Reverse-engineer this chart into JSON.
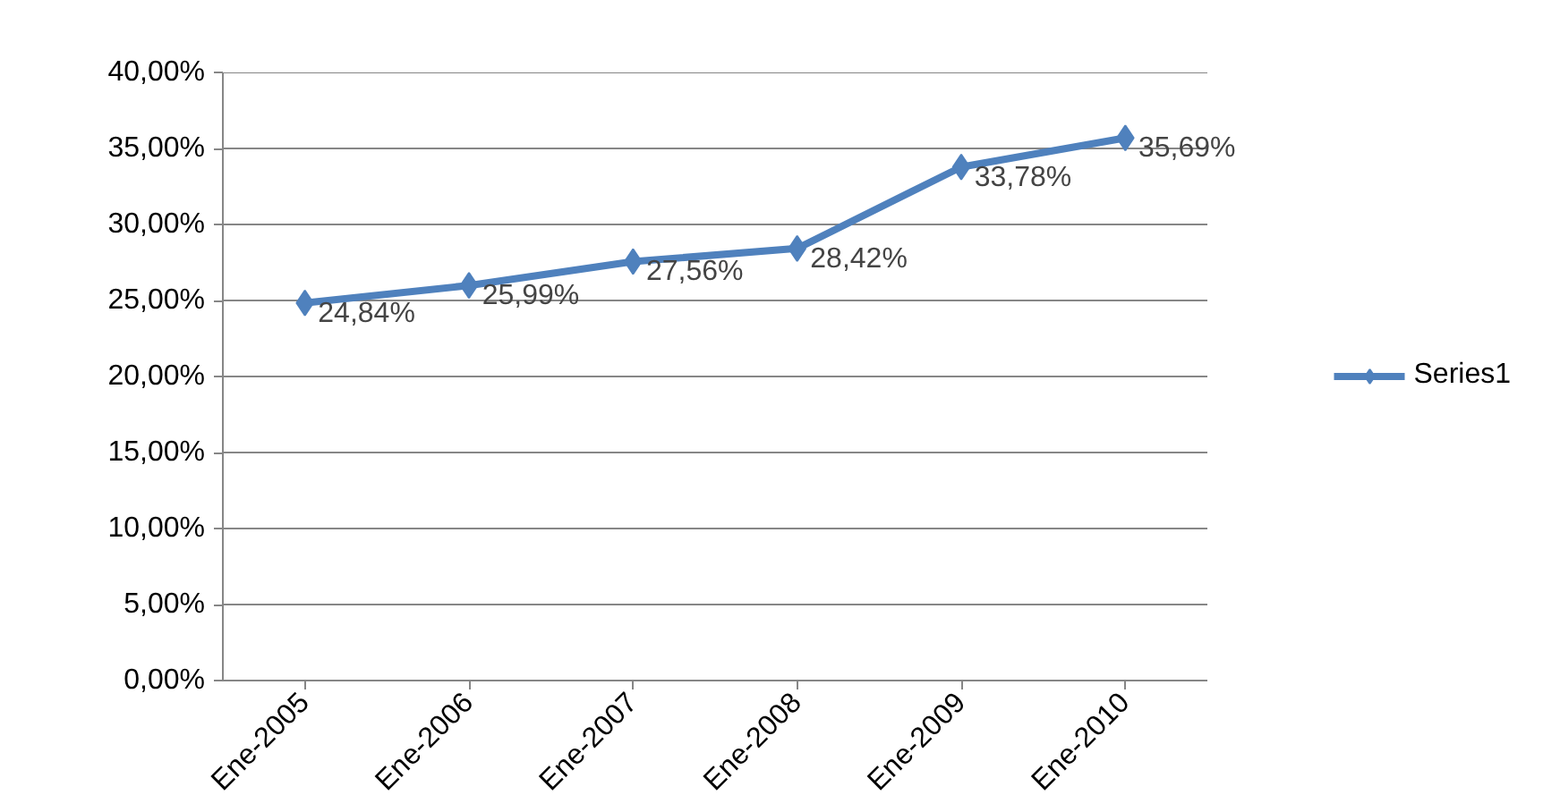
{
  "chart_data": {
    "type": "line",
    "categories": [
      "Ene-2005",
      "Ene-2006",
      "Ene-2007",
      "Ene-2008",
      "Ene-2009",
      "Ene-2010"
    ],
    "series": [
      {
        "name": "Series1",
        "color": "#4f81bd",
        "values": [
          24.84,
          25.99,
          27.56,
          28.42,
          33.78,
          35.69
        ],
        "value_labels": [
          "24,84%",
          "25,99%",
          "27,56%",
          "28,42%",
          "33,78%",
          "35,69%"
        ]
      }
    ],
    "ylim": [
      0,
      40
    ],
    "yticks": [
      {
        "value": 0,
        "label": "0,00%"
      },
      {
        "value": 5,
        "label": "5,00%"
      },
      {
        "value": 10,
        "label": "10,00%"
      },
      {
        "value": 15,
        "label": "15,00%"
      },
      {
        "value": 20,
        "label": "20,00%"
      },
      {
        "value": 25,
        "label": "25,00%"
      },
      {
        "value": 30,
        "label": "30,00%"
      },
      {
        "value": 35,
        "label": "35,00%"
      },
      {
        "value": 40,
        "label": "40,00%"
      }
    ],
    "grid": "y",
    "legend": "right",
    "marker": "diamond",
    "line_style": "solid"
  }
}
